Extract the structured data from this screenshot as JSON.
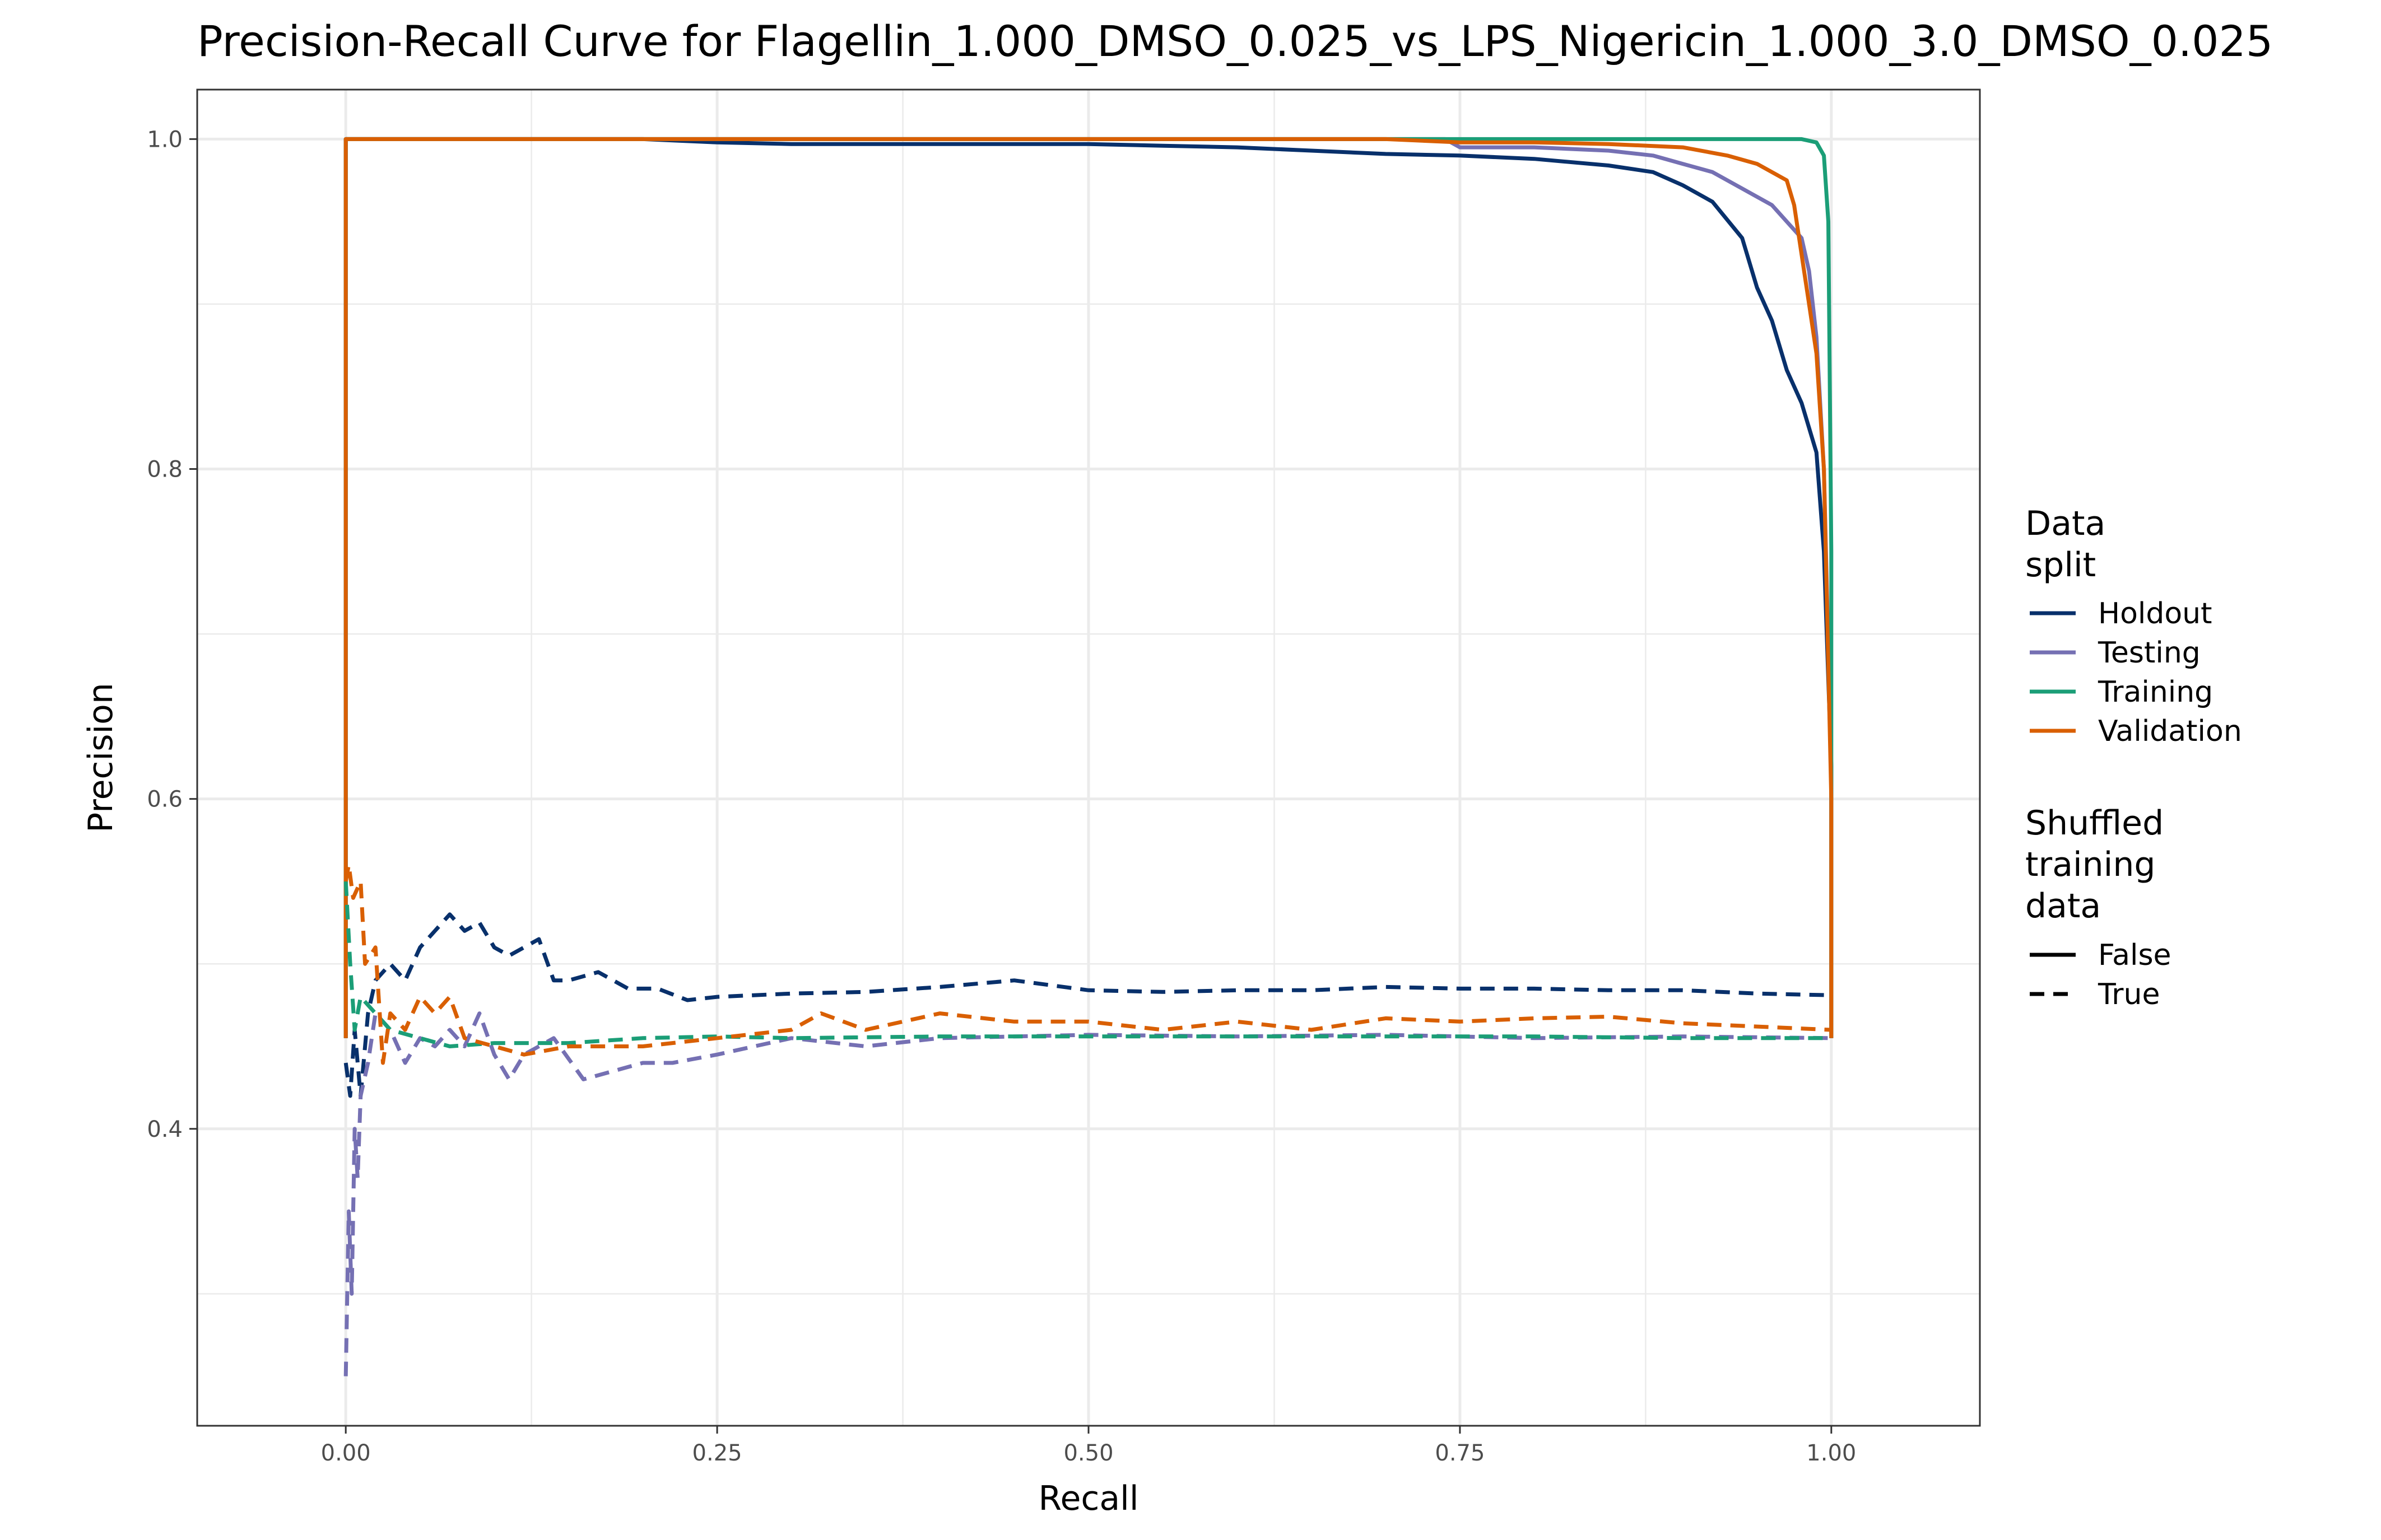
{
  "chart_data": {
    "type": "line",
    "title": "Precision-Recall Curve for Flagellin_1.000_DMSO_0.025_vs_LPS_Nigericin_1.000_3.0_DMSO_0.025",
    "xlabel": "Recall",
    "ylabel": "Precision",
    "xlim": [
      -0.1,
      1.1
    ],
    "ylim": [
      0.22,
      1.03
    ],
    "x_ticks": [
      0.0,
      0.25,
      0.5,
      0.75,
      1.0
    ],
    "x_tick_labels": [
      "0.00",
      "0.25",
      "0.50",
      "0.75",
      "1.00"
    ],
    "y_ticks": [
      0.4,
      0.6,
      0.8,
      1.0
    ],
    "y_tick_labels": [
      "0.4",
      "0.6",
      "0.8",
      "1.0"
    ],
    "grid": true,
    "legend_position": "right",
    "legend": {
      "color_title": [
        "Data",
        "split"
      ],
      "linetype_title": [
        "Shuffled",
        "training",
        "data"
      ],
      "colors": [
        {
          "label": "Holdout",
          "color": "#08306b"
        },
        {
          "label": "Testing",
          "color": "#7570b3"
        },
        {
          "label": "Training",
          "color": "#1b9e77"
        },
        {
          "label": "Validation",
          "color": "#d95f02"
        }
      ],
      "linetypes": [
        {
          "label": "False",
          "dash": "solid"
        },
        {
          "label": "True",
          "dash": "dashed"
        }
      ]
    },
    "series": [
      {
        "name": "Holdout",
        "shuffled": "False",
        "color": "#08306b",
        "dash": "solid",
        "x": [
          0.0,
          0.0,
          0.1,
          0.2,
          0.25,
          0.3,
          0.4,
          0.5,
          0.55,
          0.6,
          0.65,
          0.7,
          0.75,
          0.8,
          0.85,
          0.88,
          0.9,
          0.92,
          0.94,
          0.95,
          0.96,
          0.97,
          0.98,
          0.99,
          0.995,
          1.0,
          1.0
        ],
        "y": [
          0.455,
          1.0,
          1.0,
          1.0,
          0.998,
          0.997,
          0.997,
          0.997,
          0.996,
          0.995,
          0.993,
          0.991,
          0.99,
          0.988,
          0.984,
          0.98,
          0.972,
          0.962,
          0.94,
          0.91,
          0.89,
          0.86,
          0.84,
          0.81,
          0.75,
          0.62,
          0.455
        ]
      },
      {
        "name": "Testing",
        "shuffled": "False",
        "color": "#7570b3",
        "dash": "solid",
        "x": [
          0.0,
          0.0,
          0.2,
          0.4,
          0.6,
          0.74,
          0.75,
          0.8,
          0.85,
          0.88,
          0.9,
          0.92,
          0.94,
          0.96,
          0.97,
          0.98,
          0.985,
          0.99,
          0.995,
          1.0,
          1.0
        ],
        "y": [
          0.455,
          1.0,
          1.0,
          1.0,
          1.0,
          1.0,
          0.995,
          0.995,
          0.993,
          0.99,
          0.985,
          0.98,
          0.97,
          0.96,
          0.95,
          0.94,
          0.92,
          0.88,
          0.8,
          0.62,
          0.455
        ]
      },
      {
        "name": "Training",
        "shuffled": "False",
        "color": "#1b9e77",
        "dash": "solid",
        "x": [
          0.0,
          0.0,
          0.2,
          0.4,
          0.6,
          0.8,
          0.9,
          0.95,
          0.98,
          0.99,
          0.995,
          0.998,
          1.0,
          1.0
        ],
        "y": [
          0.455,
          1.0,
          1.0,
          1.0,
          1.0,
          1.0,
          1.0,
          1.0,
          1.0,
          0.998,
          0.99,
          0.95,
          0.75,
          0.455
        ]
      },
      {
        "name": "Validation",
        "shuffled": "False",
        "color": "#d95f02",
        "dash": "solid",
        "x": [
          0.0,
          0.0,
          0.2,
          0.5,
          0.7,
          0.75,
          0.8,
          0.85,
          0.9,
          0.93,
          0.95,
          0.96,
          0.97,
          0.975,
          0.98,
          0.985,
          0.99,
          0.995,
          1.0,
          1.0
        ],
        "y": [
          0.455,
          1.0,
          1.0,
          1.0,
          1.0,
          0.998,
          0.998,
          0.997,
          0.995,
          0.99,
          0.985,
          0.98,
          0.975,
          0.96,
          0.93,
          0.9,
          0.87,
          0.8,
          0.6,
          0.455
        ]
      },
      {
        "name": "Holdout",
        "shuffled": "True",
        "color": "#08306b",
        "dash": "dashed",
        "x": [
          0.0,
          0.003,
          0.006,
          0.01,
          0.015,
          0.02,
          0.03,
          0.04,
          0.05,
          0.06,
          0.07,
          0.08,
          0.09,
          0.1,
          0.11,
          0.12,
          0.13,
          0.14,
          0.15,
          0.17,
          0.19,
          0.21,
          0.23,
          0.25,
          0.3,
          0.35,
          0.4,
          0.45,
          0.5,
          0.55,
          0.6,
          0.65,
          0.7,
          0.75,
          0.8,
          0.85,
          0.9,
          0.95,
          1.0
        ],
        "y": [
          0.44,
          0.42,
          0.46,
          0.42,
          0.47,
          0.49,
          0.5,
          0.49,
          0.51,
          0.52,
          0.53,
          0.52,
          0.525,
          0.51,
          0.505,
          0.51,
          0.515,
          0.49,
          0.49,
          0.495,
          0.485,
          0.485,
          0.478,
          0.48,
          0.482,
          0.483,
          0.486,
          0.49,
          0.484,
          0.483,
          0.484,
          0.484,
          0.486,
          0.485,
          0.485,
          0.484,
          0.484,
          0.482,
          0.481
        ]
      },
      {
        "name": "Testing",
        "shuffled": "True",
        "color": "#7570b3",
        "dash": "dashed",
        "x": [
          0.0,
          0.002,
          0.004,
          0.006,
          0.008,
          0.01,
          0.015,
          0.02,
          0.03,
          0.04,
          0.05,
          0.06,
          0.07,
          0.08,
          0.09,
          0.1,
          0.11,
          0.12,
          0.13,
          0.14,
          0.16,
          0.18,
          0.2,
          0.22,
          0.25,
          0.3,
          0.35,
          0.4,
          0.5,
          0.6,
          0.7,
          0.8,
          0.9,
          1.0
        ],
        "y": [
          0.25,
          0.35,
          0.3,
          0.4,
          0.37,
          0.42,
          0.44,
          0.47,
          0.46,
          0.44,
          0.455,
          0.45,
          0.46,
          0.45,
          0.47,
          0.445,
          0.43,
          0.445,
          0.45,
          0.455,
          0.43,
          0.435,
          0.44,
          0.44,
          0.445,
          0.455,
          0.45,
          0.455,
          0.457,
          0.456,
          0.457,
          0.455,
          0.456,
          0.455
        ]
      },
      {
        "name": "Training",
        "shuffled": "True",
        "color": "#1b9e77",
        "dash": "dashed",
        "x": [
          0.0,
          0.003,
          0.006,
          0.01,
          0.02,
          0.03,
          0.05,
          0.07,
          0.1,
          0.15,
          0.2,
          0.25,
          0.3,
          0.4,
          0.5,
          0.6,
          0.7,
          0.8,
          0.9,
          1.0
        ],
        "y": [
          0.55,
          0.5,
          0.46,
          0.48,
          0.47,
          0.46,
          0.455,
          0.45,
          0.452,
          0.452,
          0.455,
          0.456,
          0.455,
          0.456,
          0.456,
          0.456,
          0.456,
          0.456,
          0.455,
          0.455
        ]
      },
      {
        "name": "Validation",
        "shuffled": "True",
        "color": "#d95f02",
        "dash": "dashed",
        "x": [
          0.0,
          0.002,
          0.005,
          0.01,
          0.013,
          0.02,
          0.025,
          0.03,
          0.04,
          0.05,
          0.06,
          0.07,
          0.08,
          0.1,
          0.12,
          0.15,
          0.2,
          0.25,
          0.3,
          0.32,
          0.35,
          0.4,
          0.45,
          0.5,
          0.55,
          0.6,
          0.65,
          0.7,
          0.75,
          0.8,
          0.85,
          0.9,
          0.95,
          1.0
        ],
        "y": [
          0.55,
          0.56,
          0.54,
          0.55,
          0.5,
          0.51,
          0.44,
          0.47,
          0.46,
          0.48,
          0.47,
          0.48,
          0.455,
          0.45,
          0.445,
          0.45,
          0.45,
          0.455,
          0.46,
          0.47,
          0.46,
          0.47,
          0.465,
          0.465,
          0.46,
          0.465,
          0.46,
          0.467,
          0.465,
          0.467,
          0.468,
          0.464,
          0.462,
          0.46
        ]
      }
    ]
  }
}
